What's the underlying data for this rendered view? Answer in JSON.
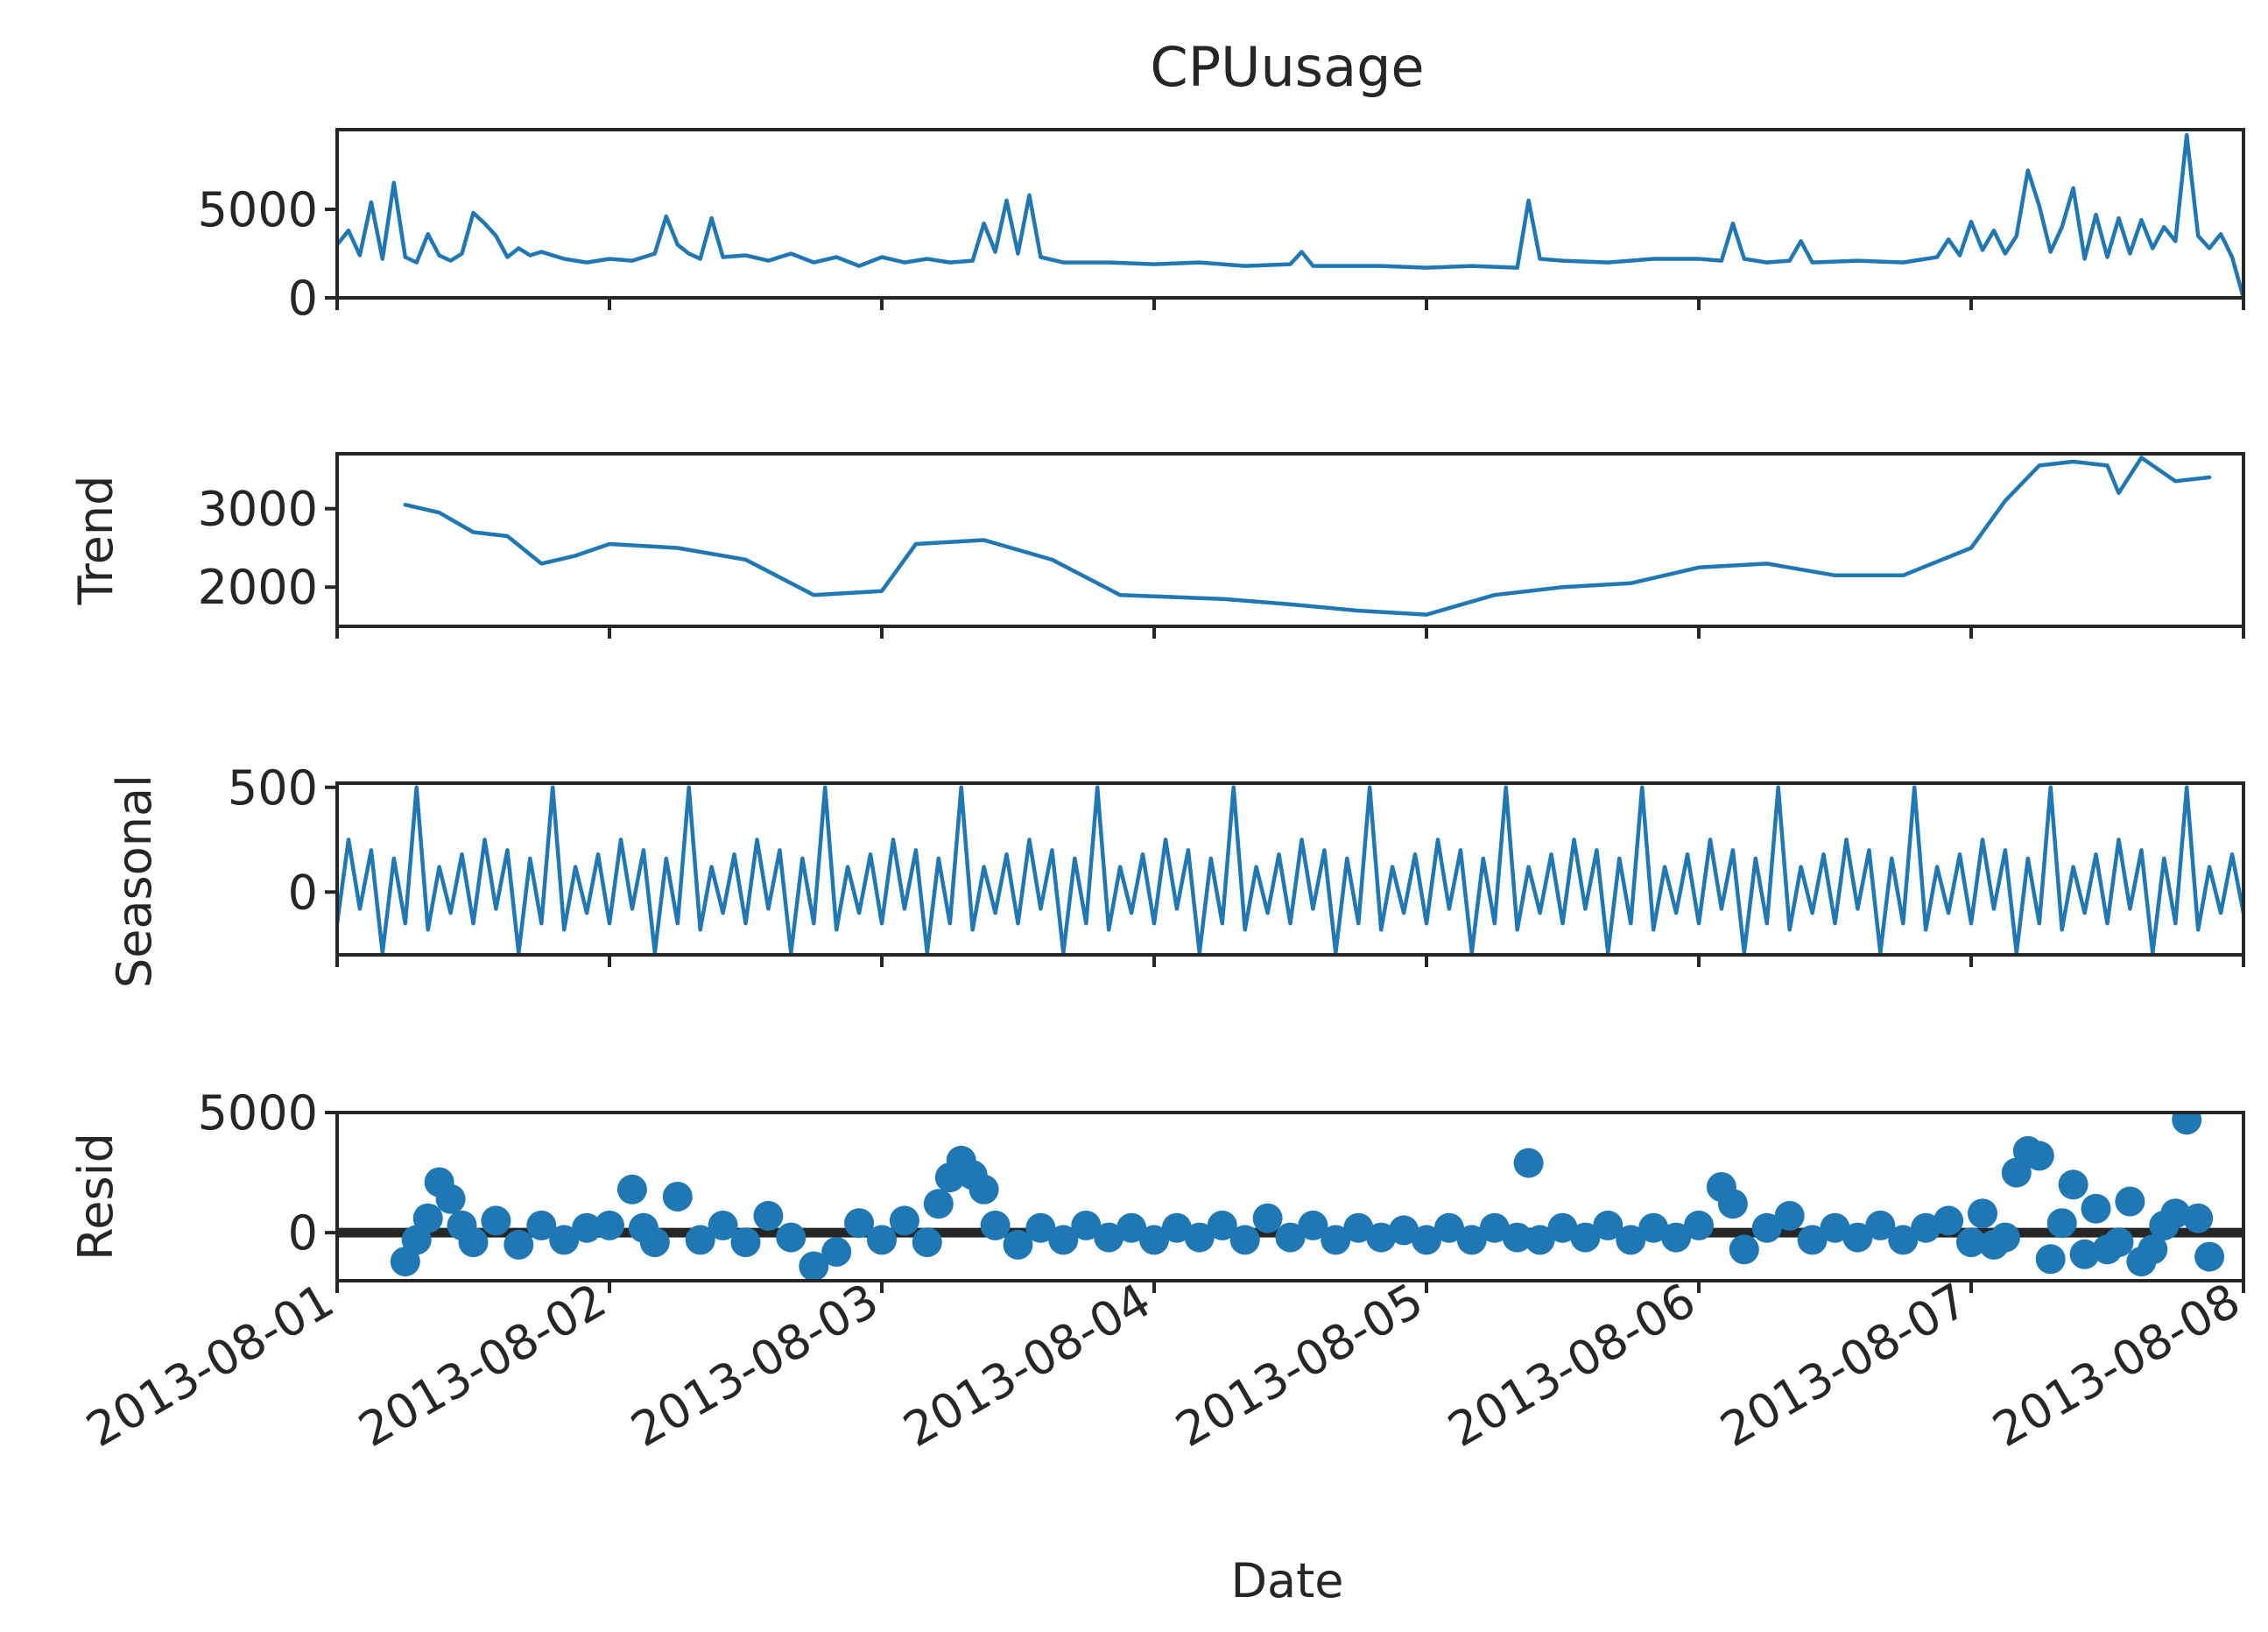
{
  "figure": {
    "title": "CPUusage",
    "xlabel": "Date"
  },
  "chart_data": [
    {
      "type": "line",
      "ylabel": "",
      "x_range": [
        "2013-08-01",
        "2013-08-08"
      ],
      "ylim": [
        0,
        9500
      ],
      "yticks": [
        0,
        5000
      ],
      "xticks": [
        "2013-08-01",
        "2013-08-02",
        "2013-08-03",
        "2013-08-04",
        "2013-08-05",
        "2013-08-06",
        "2013-08-07",
        "2013-08-08"
      ],
      "color": "#1f77b4",
      "points": [
        [
          "2013-08-01 00:00",
          3000
        ],
        [
          "2013-08-01 01:00",
          3800
        ],
        [
          "2013-08-01 02:00",
          2400
        ],
        [
          "2013-08-01 03:00",
          5400
        ],
        [
          "2013-08-01 04:00",
          2200
        ],
        [
          "2013-08-01 05:00",
          6500
        ],
        [
          "2013-08-01 06:00",
          2300
        ],
        [
          "2013-08-01 07:00",
          2000
        ],
        [
          "2013-08-01 08:00",
          3600
        ],
        [
          "2013-08-01 09:00",
          2400
        ],
        [
          "2013-08-01 10:00",
          2100
        ],
        [
          "2013-08-01 11:00",
          2500
        ],
        [
          "2013-08-01 12:00",
          4800
        ],
        [
          "2013-08-01 13:00",
          4200
        ],
        [
          "2013-08-01 14:00",
          3500
        ],
        [
          "2013-08-01 15:00",
          2300
        ],
        [
          "2013-08-01 16:00",
          2800
        ],
        [
          "2013-08-01 17:00",
          2400
        ],
        [
          "2013-08-01 18:00",
          2600
        ],
        [
          "2013-08-01 20:00",
          2200
        ],
        [
          "2013-08-01 22:00",
          2000
        ],
        [
          "2013-08-02 00:00",
          2200
        ],
        [
          "2013-08-02 02:00",
          2100
        ],
        [
          "2013-08-02 04:00",
          2500
        ],
        [
          "2013-08-02 05:00",
          4600
        ],
        [
          "2013-08-02 06:00",
          3000
        ],
        [
          "2013-08-02 07:00",
          2500
        ],
        [
          "2013-08-02 08:00",
          2200
        ],
        [
          "2013-08-02 09:00",
          4500
        ],
        [
          "2013-08-02 10:00",
          2300
        ],
        [
          "2013-08-02 12:00",
          2400
        ],
        [
          "2013-08-02 14:00",
          2100
        ],
        [
          "2013-08-02 16:00",
          2500
        ],
        [
          "2013-08-02 18:00",
          2000
        ],
        [
          "2013-08-02 20:00",
          2300
        ],
        [
          "2013-08-02 22:00",
          1800
        ],
        [
          "2013-08-03 00:00",
          2300
        ],
        [
          "2013-08-03 02:00",
          2000
        ],
        [
          "2013-08-03 04:00",
          2200
        ],
        [
          "2013-08-03 06:00",
          2000
        ],
        [
          "2013-08-03 08:00",
          2100
        ],
        [
          "2013-08-03 09:00",
          4200
        ],
        [
          "2013-08-03 10:00",
          2600
        ],
        [
          "2013-08-03 11:00",
          5500
        ],
        [
          "2013-08-03 12:00",
          2500
        ],
        [
          "2013-08-03 13:00",
          5800
        ],
        [
          "2013-08-03 14:00",
          2300
        ],
        [
          "2013-08-03 16:00",
          2000
        ],
        [
          "2013-08-03 20:00",
          2000
        ],
        [
          "2013-08-04 00:00",
          1900
        ],
        [
          "2013-08-04 04:00",
          2000
        ],
        [
          "2013-08-04 08:00",
          1800
        ],
        [
          "2013-08-04 12:00",
          1900
        ],
        [
          "2013-08-04 13:00",
          2600
        ],
        [
          "2013-08-04 14:00",
          1800
        ],
        [
          "2013-08-04 20:00",
          1800
        ],
        [
          "2013-08-05 00:00",
          1700
        ],
        [
          "2013-08-05 04:00",
          1800
        ],
        [
          "2013-08-05 08:00",
          1700
        ],
        [
          "2013-08-05 09:00",
          5500
        ],
        [
          "2013-08-05 10:00",
          2200
        ],
        [
          "2013-08-05 12:00",
          2100
        ],
        [
          "2013-08-05 16:00",
          2000
        ],
        [
          "2013-08-05 20:00",
          2200
        ],
        [
          "2013-08-06 00:00",
          2200
        ],
        [
          "2013-08-06 02:00",
          2100
        ],
        [
          "2013-08-06 03:00",
          4200
        ],
        [
          "2013-08-06 04:00",
          2200
        ],
        [
          "2013-08-06 06:00",
          2000
        ],
        [
          "2013-08-06 08:00",
          2100
        ],
        [
          "2013-08-06 09:00",
          3200
        ],
        [
          "2013-08-06 10:00",
          2000
        ],
        [
          "2013-08-06 14:00",
          2100
        ],
        [
          "2013-08-06 18:00",
          2000
        ],
        [
          "2013-08-06 21:00",
          2300
        ],
        [
          "2013-08-06 22:00",
          3300
        ],
        [
          "2013-08-06 23:00",
          2400
        ],
        [
          "2013-08-07 00:00",
          4300
        ],
        [
          "2013-08-07 01:00",
          2700
        ],
        [
          "2013-08-07 02:00",
          3800
        ],
        [
          "2013-08-07 03:00",
          2500
        ],
        [
          "2013-08-07 04:00",
          3500
        ],
        [
          "2013-08-07 05:00",
          7200
        ],
        [
          "2013-08-07 06:00",
          5200
        ],
        [
          "2013-08-07 07:00",
          2600
        ],
        [
          "2013-08-07 08:00",
          4000
        ],
        [
          "2013-08-07 09:00",
          6200
        ],
        [
          "2013-08-07 10:00",
          2200
        ],
        [
          "2013-08-07 11:00",
          4700
        ],
        [
          "2013-08-07 12:00",
          2300
        ],
        [
          "2013-08-07 13:00",
          4500
        ],
        [
          "2013-08-07 14:00",
          2500
        ],
        [
          "2013-08-07 15:00",
          4400
        ],
        [
          "2013-08-07 16:00",
          2800
        ],
        [
          "2013-08-07 17:00",
          4000
        ],
        [
          "2013-08-07 18:00",
          3200
        ],
        [
          "2013-08-07 19:00",
          9200
        ],
        [
          "2013-08-07 20:00",
          3500
        ],
        [
          "2013-08-07 21:00",
          2800
        ],
        [
          "2013-08-07 22:00",
          3600
        ],
        [
          "2013-08-07 23:00",
          2300
        ],
        [
          "2013-08-08 00:00",
          0
        ]
      ]
    },
    {
      "type": "line",
      "ylabel": "Trend",
      "x_range": [
        "2013-08-01",
        "2013-08-08"
      ],
      "ylim": [
        1500,
        3700
      ],
      "yticks": [
        2000,
        3000
      ],
      "xticks": [
        "2013-08-01",
        "2013-08-02",
        "2013-08-03",
        "2013-08-04",
        "2013-08-05",
        "2013-08-06",
        "2013-08-07",
        "2013-08-08"
      ],
      "color": "#1f77b4",
      "points": [
        [
          "2013-08-01 06:00",
          3050
        ],
        [
          "2013-08-01 09:00",
          2950
        ],
        [
          "2013-08-01 12:00",
          2700
        ],
        [
          "2013-08-01 15:00",
          2650
        ],
        [
          "2013-08-01 18:00",
          2300
        ],
        [
          "2013-08-01 21:00",
          2400
        ],
        [
          "2013-08-02 00:00",
          2550
        ],
        [
          "2013-08-02 06:00",
          2500
        ],
        [
          "2013-08-02 12:00",
          2350
        ],
        [
          "2013-08-02 18:00",
          1900
        ],
        [
          "2013-08-03 00:00",
          1950
        ],
        [
          "2013-08-03 03:00",
          2550
        ],
        [
          "2013-08-03 09:00",
          2600
        ],
        [
          "2013-08-03 15:00",
          2350
        ],
        [
          "2013-08-03 21:00",
          1900
        ],
        [
          "2013-08-04 06:00",
          1850
        ],
        [
          "2013-08-04 12:00",
          1780
        ],
        [
          "2013-08-04 18:00",
          1700
        ],
        [
          "2013-08-05 00:00",
          1650
        ],
        [
          "2013-08-05 06:00",
          1900
        ],
        [
          "2013-08-05 12:00",
          2000
        ],
        [
          "2013-08-05 18:00",
          2050
        ],
        [
          "2013-08-06 00:00",
          2250
        ],
        [
          "2013-08-06 06:00",
          2300
        ],
        [
          "2013-08-06 12:00",
          2150
        ],
        [
          "2013-08-06 18:00",
          2150
        ],
        [
          "2013-08-07 00:00",
          2500
        ],
        [
          "2013-08-07 03:00",
          3100
        ],
        [
          "2013-08-07 06:00",
          3550
        ],
        [
          "2013-08-07 09:00",
          3600
        ],
        [
          "2013-08-07 12:00",
          3550
        ],
        [
          "2013-08-07 13:00",
          3200
        ],
        [
          "2013-08-07 15:00",
          3650
        ],
        [
          "2013-08-07 18:00",
          3350
        ],
        [
          "2013-08-07 21:00",
          3400
        ]
      ]
    },
    {
      "type": "line",
      "ylabel": "Seasonal",
      "x_range": [
        "2013-08-01",
        "2013-08-08"
      ],
      "ylim": [
        -300,
        520
      ],
      "yticks": [
        0,
        500
      ],
      "xticks": [
        "2013-08-01",
        "2013-08-02",
        "2013-08-03",
        "2013-08-04",
        "2013-08-05",
        "2013-08-06",
        "2013-08-07",
        "2013-08-08"
      ],
      "color": "#1f77b4",
      "period_hours": 12,
      "first_peak": "2013-08-01 07:00",
      "period_pattern": [
        500,
        -180,
        120,
        -100,
        180,
        -150,
        250,
        -80,
        200,
        -290,
        160,
        -150
      ],
      "last_value": -100
    },
    {
      "type": "scatter",
      "ylabel": "Resid",
      "x_range": [
        "2013-08-01",
        "2013-08-08"
      ],
      "ylim": [
        -2000,
        5000
      ],
      "yticks": [
        0,
        5000
      ],
      "xticks": [
        "2013-08-01",
        "2013-08-02",
        "2013-08-03",
        "2013-08-04",
        "2013-08-05",
        "2013-08-06",
        "2013-08-07",
        "2013-08-08"
      ],
      "color": "#1f77b4",
      "zero_line": 0,
      "points": [
        [
          "2013-08-01 06:00",
          -1200
        ],
        [
          "2013-08-01 07:00",
          -300
        ],
        [
          "2013-08-01 08:00",
          600
        ],
        [
          "2013-08-01 09:00",
          2100
        ],
        [
          "2013-08-01 10:00",
          1400
        ],
        [
          "2013-08-01 11:00",
          300
        ],
        [
          "2013-08-01 12:00",
          -400
        ],
        [
          "2013-08-01 14:00",
          500
        ],
        [
          "2013-08-01 16:00",
          -500
        ],
        [
          "2013-08-01 18:00",
          300
        ],
        [
          "2013-08-01 20:00",
          -300
        ],
        [
          "2013-08-01 22:00",
          200
        ],
        [
          "2013-08-02 00:00",
          300
        ],
        [
          "2013-08-02 02:00",
          1800
        ],
        [
          "2013-08-02 03:00",
          200
        ],
        [
          "2013-08-02 04:00",
          -400
        ],
        [
          "2013-08-02 06:00",
          1500
        ],
        [
          "2013-08-02 08:00",
          -300
        ],
        [
          "2013-08-02 10:00",
          300
        ],
        [
          "2013-08-02 12:00",
          -400
        ],
        [
          "2013-08-02 14:00",
          700
        ],
        [
          "2013-08-02 16:00",
          -200
        ],
        [
          "2013-08-02 18:00",
          -1400
        ],
        [
          "2013-08-02 20:00",
          -800
        ],
        [
          "2013-08-02 22:00",
          400
        ],
        [
          "2013-08-03 00:00",
          -300
        ],
        [
          "2013-08-03 02:00",
          500
        ],
        [
          "2013-08-03 04:00",
          -400
        ],
        [
          "2013-08-03 05:00",
          1200
        ],
        [
          "2013-08-03 06:00",
          2300
        ],
        [
          "2013-08-03 07:00",
          3000
        ],
        [
          "2013-08-03 08:00",
          2400
        ],
        [
          "2013-08-03 09:00",
          1800
        ],
        [
          "2013-08-03 10:00",
          300
        ],
        [
          "2013-08-03 12:00",
          -500
        ],
        [
          "2013-08-03 14:00",
          200
        ],
        [
          "2013-08-03 16:00",
          -300
        ],
        [
          "2013-08-03 18:00",
          300
        ],
        [
          "2013-08-03 20:00",
          -200
        ],
        [
          "2013-08-03 22:00",
          200
        ],
        [
          "2013-08-04 00:00",
          -300
        ],
        [
          "2013-08-04 02:00",
          200
        ],
        [
          "2013-08-04 04:00",
          -200
        ],
        [
          "2013-08-04 06:00",
          300
        ],
        [
          "2013-08-04 08:00",
          -300
        ],
        [
          "2013-08-04 10:00",
          600
        ],
        [
          "2013-08-04 12:00",
          -200
        ],
        [
          "2013-08-04 14:00",
          300
        ],
        [
          "2013-08-04 16:00",
          -300
        ],
        [
          "2013-08-04 18:00",
          200
        ],
        [
          "2013-08-04 20:00",
          -200
        ],
        [
          "2013-08-04 22:00",
          100
        ],
        [
          "2013-08-05 00:00",
          -300
        ],
        [
          "2013-08-05 02:00",
          200
        ],
        [
          "2013-08-05 04:00",
          -300
        ],
        [
          "2013-08-05 06:00",
          200
        ],
        [
          "2013-08-05 08:00",
          -200
        ],
        [
          "2013-08-05 09:00",
          2900
        ],
        [
          "2013-08-05 10:00",
          -300
        ],
        [
          "2013-08-05 12:00",
          200
        ],
        [
          "2013-08-05 14:00",
          -200
        ],
        [
          "2013-08-05 16:00",
          300
        ],
        [
          "2013-08-05 18:00",
          -300
        ],
        [
          "2013-08-05 20:00",
          200
        ],
        [
          "2013-08-05 22:00",
          -200
        ],
        [
          "2013-08-06 00:00",
          300
        ],
        [
          "2013-08-06 02:00",
          1900
        ],
        [
          "2013-08-06 03:00",
          1200
        ],
        [
          "2013-08-06 04:00",
          -700
        ],
        [
          "2013-08-06 06:00",
          200
        ],
        [
          "2013-08-06 08:00",
          700
        ],
        [
          "2013-08-06 10:00",
          -300
        ],
        [
          "2013-08-06 12:00",
          200
        ],
        [
          "2013-08-06 14:00",
          -200
        ],
        [
          "2013-08-06 16:00",
          300
        ],
        [
          "2013-08-06 18:00",
          -300
        ],
        [
          "2013-08-06 20:00",
          200
        ],
        [
          "2013-08-06 22:00",
          500
        ],
        [
          "2013-08-07 00:00",
          -400
        ],
        [
          "2013-08-07 01:00",
          800
        ],
        [
          "2013-08-07 02:00",
          -500
        ],
        [
          "2013-08-07 03:00",
          -200
        ],
        [
          "2013-08-07 04:00",
          2500
        ],
        [
          "2013-08-07 05:00",
          3400
        ],
        [
          "2013-08-07 06:00",
          3200
        ],
        [
          "2013-08-07 07:00",
          -1100
        ],
        [
          "2013-08-07 08:00",
          400
        ],
        [
          "2013-08-07 09:00",
          2000
        ],
        [
          "2013-08-07 10:00",
          -900
        ],
        [
          "2013-08-07 11:00",
          1000
        ],
        [
          "2013-08-07 12:00",
          -700
        ],
        [
          "2013-08-07 13:00",
          -400
        ],
        [
          "2013-08-07 14:00",
          1300
        ],
        [
          "2013-08-07 15:00",
          -1200
        ],
        [
          "2013-08-07 16:00",
          -700
        ],
        [
          "2013-08-07 17:00",
          300
        ],
        [
          "2013-08-07 18:00",
          800
        ],
        [
          "2013-08-07 19:00",
          4700
        ],
        [
          "2013-08-07 20:00",
          600
        ],
        [
          "2013-08-07 21:00",
          -1000
        ]
      ]
    }
  ]
}
